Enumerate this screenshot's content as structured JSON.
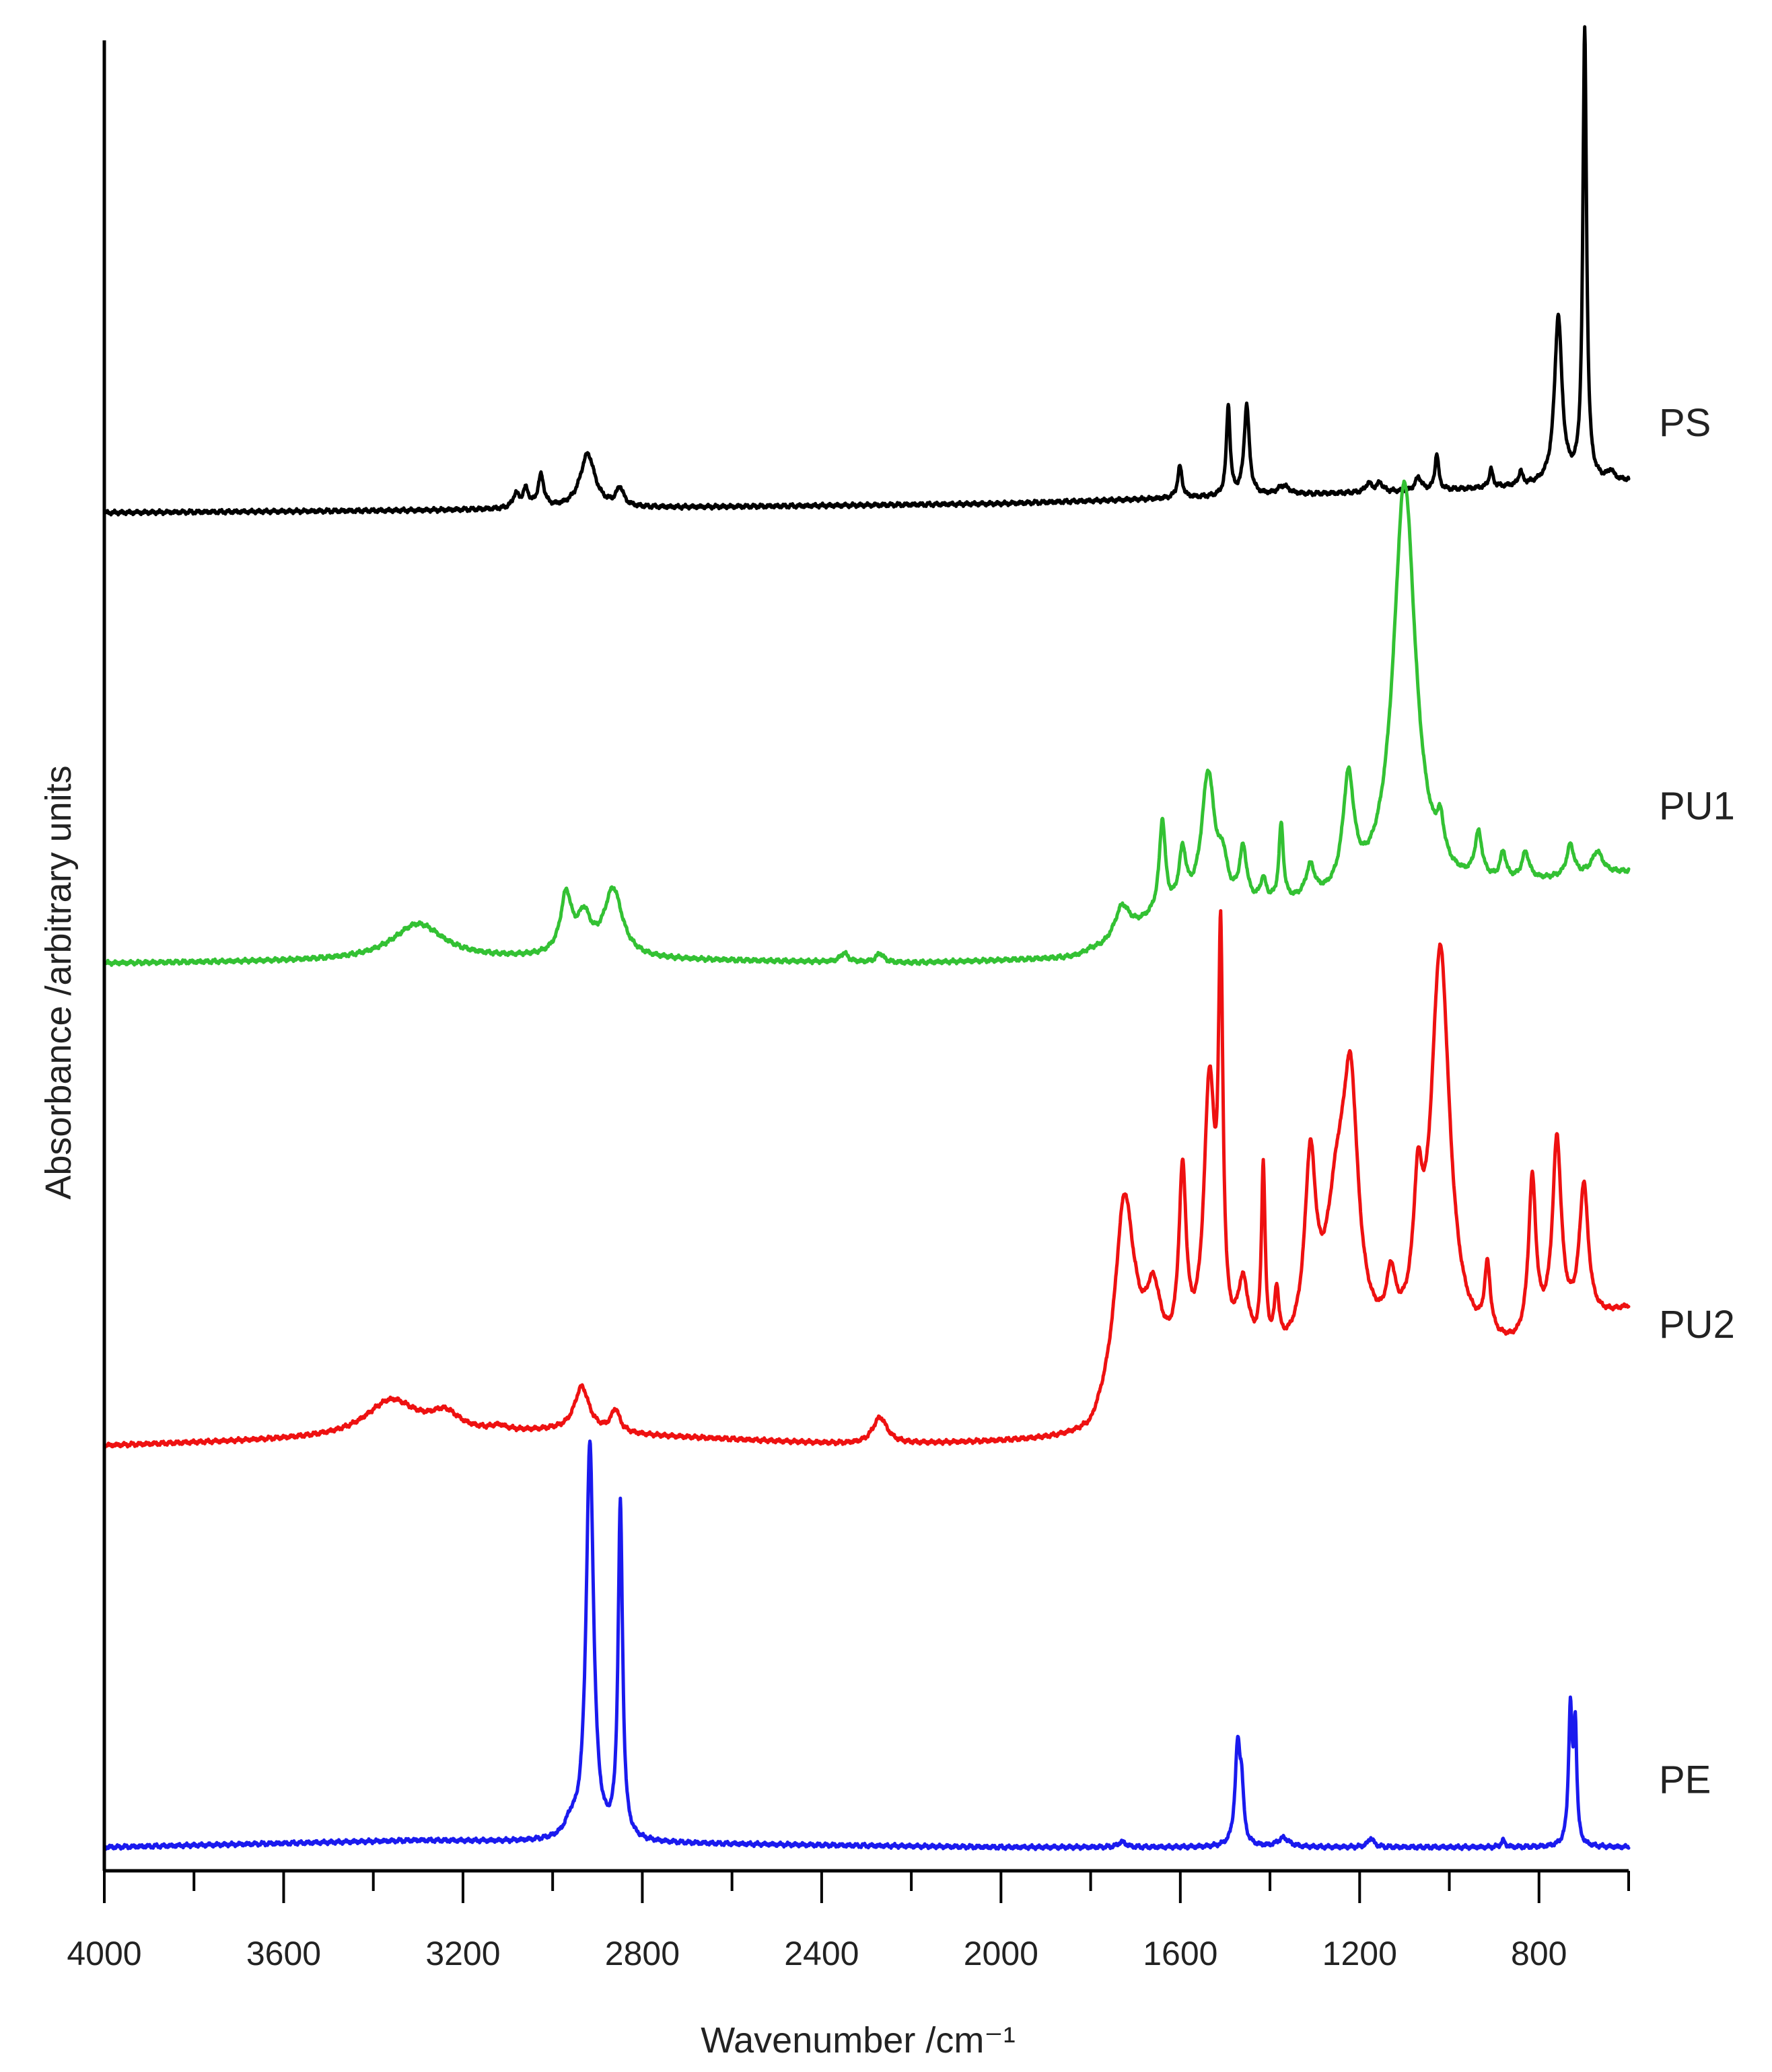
{
  "chart_data": {
    "type": "line",
    "xlabel": "Wavenumber /cm⁻¹",
    "ylabel": "Absorbance /arbitrary units",
    "xlim": [
      4000,
      600
    ],
    "x_reversed": true,
    "x_ticks": [
      4000,
      3600,
      3200,
      2800,
      2400,
      2000,
      1600,
      1200,
      800
    ],
    "x_tick_labels": [
      "4000",
      "3600",
      "3200",
      "2800",
      "2400",
      "2000",
      "1600",
      "1200",
      "800"
    ],
    "x_minor_step": 200,
    "y_ticks_shown": false,
    "grid": false,
    "legend": "labels at right end of each trace",
    "series": [
      {
        "name": "PS",
        "color": "#000000",
        "offset": 2.96,
        "label_height": 0.2,
        "baseline": [
          [
            4000,
            0.0
          ],
          [
            3300,
            0.005
          ],
          [
            2000,
            0.02
          ],
          [
            1000,
            0.05
          ],
          [
            600,
            0.07
          ]
        ],
        "peaks": [
          [
            3082,
            0.03,
            8
          ],
          [
            3060,
            0.04,
            8
          ],
          [
            3026,
            0.07,
            8
          ],
          [
            2922,
            0.12,
            20
          ],
          [
            2850,
            0.04,
            10
          ],
          [
            1601,
            0.07,
            6
          ],
          [
            1493,
            0.2,
            5
          ],
          [
            1452,
            0.2,
            7
          ],
          [
            1370,
            0.02,
            15
          ],
          [
            1180,
            0.02,
            8
          ],
          [
            1155,
            0.02,
            8
          ],
          [
            1069,
            0.03,
            8
          ],
          [
            1028,
            0.08,
            5
          ],
          [
            907,
            0.04,
            5
          ],
          [
            841,
            0.03,
            5
          ],
          [
            757,
            0.37,
            10
          ],
          [
            698,
            1.0,
            5
          ],
          [
            640,
            0.02,
            8
          ]
        ]
      },
      {
        "name": "PU1",
        "color": "#33c133",
        "offset": 1.96,
        "label_height": 0.35,
        "baseline": [
          [
            4000,
            0.0
          ],
          [
            3000,
            0.01
          ],
          [
            2200,
            0.0
          ],
          [
            1800,
            0.01
          ],
          [
            1650,
            0.1
          ],
          [
            1200,
            0.13
          ],
          [
            600,
            0.2
          ]
        ],
        "peaks": [
          [
            3300,
            0.08,
            70
          ],
          [
            2970,
            0.13,
            15
          ],
          [
            2930,
            0.08,
            18
          ],
          [
            2865,
            0.15,
            25
          ],
          [
            2350,
            0.02,
            10
          ],
          [
            2270,
            0.02,
            10
          ],
          [
            1800,
            0.015,
            20
          ],
          [
            1730,
            0.07,
            20
          ],
          [
            1640,
            0.2,
            8
          ],
          [
            1595,
            0.12,
            10
          ],
          [
            1538,
            0.3,
            18
          ],
          [
            1505,
            0.08,
            12
          ],
          [
            1460,
            0.12,
            10
          ],
          [
            1415,
            0.05,
            8
          ],
          [
            1375,
            0.17,
            6
          ],
          [
            1310,
            0.07,
            12
          ],
          [
            1225,
            0.25,
            15
          ],
          [
            1100,
            0.92,
            30
          ],
          [
            1020,
            0.08,
            10
          ],
          [
            935,
            0.1,
            10
          ],
          [
            880,
            0.06,
            8
          ],
          [
            830,
            0.06,
            10
          ],
          [
            730,
            0.07,
            10
          ],
          [
            670,
            0.05,
            15
          ]
        ]
      },
      {
        "name": "PU2",
        "color": "#ee1111",
        "offset": 0.89,
        "label_height": 0.27,
        "baseline": [
          [
            4000,
            0.0
          ],
          [
            3000,
            0.03
          ],
          [
            2300,
            0.0
          ],
          [
            1800,
            0.01
          ],
          [
            1700,
            0.15
          ],
          [
            1000,
            0.2
          ],
          [
            850,
            0.2
          ],
          [
            600,
            0.3
          ]
        ],
        "peaks": [
          [
            3360,
            0.08,
            70
          ],
          [
            3240,
            0.04,
            40
          ],
          [
            3120,
            0.01,
            20
          ],
          [
            2935,
            0.1,
            20
          ],
          [
            2860,
            0.05,
            12
          ],
          [
            2270,
            0.06,
            20
          ],
          [
            1725,
            0.42,
            25
          ],
          [
            1660,
            0.15,
            20
          ],
          [
            1595,
            0.4,
            10
          ],
          [
            1535,
            0.6,
            15
          ],
          [
            1510,
            0.82,
            6
          ],
          [
            1460,
            0.15,
            15
          ],
          [
            1415,
            0.4,
            5
          ],
          [
            1385,
            0.12,
            6
          ],
          [
            1310,
            0.4,
            15
          ],
          [
            1250,
            0.3,
            30
          ],
          [
            1220,
            0.5,
            20
          ],
          [
            1130,
            0.12,
            12
          ],
          [
            1070,
            0.26,
            12
          ],
          [
            1020,
            0.88,
            25
          ],
          [
            915,
            0.15,
            8
          ],
          [
            815,
            0.35,
            10
          ],
          [
            760,
            0.42,
            12
          ],
          [
            700,
            0.3,
            12
          ]
        ]
      },
      {
        "name": "PE",
        "color": "#1a1aee",
        "offset": 0.0,
        "label_height": 0.15,
        "baseline": [
          [
            4000,
            0.0
          ],
          [
            3300,
            0.015
          ],
          [
            2900,
            0.01
          ],
          [
            2000,
            0.0
          ],
          [
            600,
            0.0
          ]
        ],
        "peaks": [
          [
            2917,
            0.88,
            10
          ],
          [
            2960,
            0.03,
            15
          ],
          [
            2849,
            0.74,
            6
          ],
          [
            1730,
            0.012,
            10
          ],
          [
            1472,
            0.22,
            7
          ],
          [
            1463,
            0.1,
            5
          ],
          [
            1370,
            0.02,
            15
          ],
          [
            1175,
            0.02,
            8
          ],
          [
            880,
            0.015,
            5
          ],
          [
            730,
            0.3,
            5
          ],
          [
            719,
            0.25,
            4
          ]
        ]
      }
    ]
  }
}
